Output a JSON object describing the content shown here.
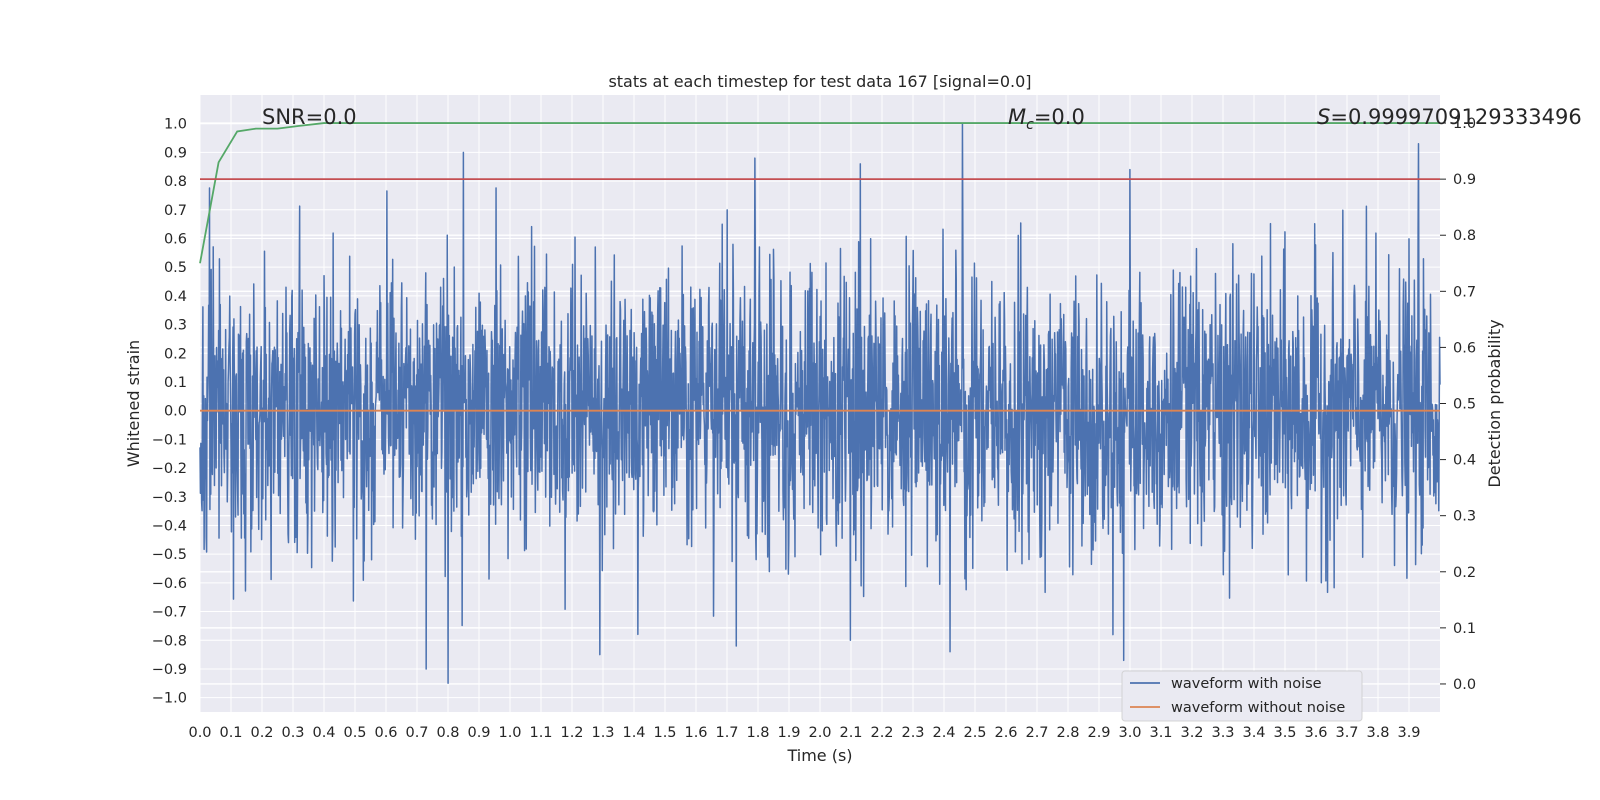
{
  "chart_data": {
    "type": "line",
    "title": "stats at each timestep for test data 167 [signal=0.0]",
    "xlabel": "Time (s)",
    "ylabel": "Whitened strain",
    "y2label": "Detection probability",
    "xlim": [
      0.0,
      4.0
    ],
    "ylim": [
      -1.05,
      1.1
    ],
    "y2lim": [
      -0.05,
      1.05
    ],
    "x_ticks": [
      "0.0",
      "0.1",
      "0.2",
      "0.3",
      "0.4",
      "0.5",
      "0.6",
      "0.7",
      "0.8",
      "0.9",
      "1.0",
      "1.1",
      "1.2",
      "1.3",
      "1.4",
      "1.5",
      "1.6",
      "1.7",
      "1.8",
      "1.9",
      "2.0",
      "2.1",
      "2.2",
      "2.3",
      "2.4",
      "2.5",
      "2.6",
      "2.7",
      "2.8",
      "2.9",
      "3.0",
      "3.1",
      "3.2",
      "3.3",
      "3.4",
      "3.5",
      "3.6",
      "3.7",
      "3.8",
      "3.9"
    ],
    "y_ticks": [
      "1.0",
      "0.9",
      "0.8",
      "0.7",
      "0.6",
      "0.5",
      "0.4",
      "0.3",
      "0.2",
      "0.1",
      "0.0",
      "-0.1",
      "-0.2",
      "-0.3",
      "-0.4",
      "-0.5",
      "-0.6",
      "-0.7",
      "-0.8",
      "-0.9",
      "-1.0"
    ],
    "y2_ticks": [
      "1.0",
      "0.9",
      "0.8",
      "0.7",
      "0.6",
      "0.5",
      "0.4",
      "0.3",
      "0.2",
      "0.1",
      "0.0"
    ],
    "grid": true,
    "legend_position": "lower-right",
    "legend": [
      "waveform with noise",
      "waveform without noise"
    ],
    "series": [
      {
        "name": "waveform with noise",
        "axis": "left",
        "color": "#4c72b0",
        "kind": "noisy",
        "x_range": [
          0.0,
          4.0
        ],
        "peaks": [
          [
            0.85,
            0.9
          ],
          [
            2.46,
            1.0
          ],
          [
            3.93,
            0.93
          ],
          [
            1.79,
            0.88
          ],
          [
            2.13,
            0.86
          ],
          [
            3.0,
            0.84
          ],
          [
            0.8,
            -0.95
          ],
          [
            0.73,
            -0.9
          ],
          [
            2.98,
            -0.87
          ],
          [
            1.29,
            -0.85
          ],
          [
            2.42,
            -0.84
          ],
          [
            1.73,
            -0.82
          ]
        ]
      },
      {
        "name": "waveform without noise",
        "axis": "left",
        "color": "#dd8452",
        "x": [
          0.0,
          4.0
        ],
        "y": [
          0.0,
          0.0
        ]
      },
      {
        "axis": "right",
        "color": "#55a868",
        "x": [
          0.0,
          0.06,
          0.12,
          0.18,
          0.25,
          0.32,
          0.4,
          1.0,
          2.0,
          3.0,
          4.0
        ],
        "y": [
          0.75,
          0.93,
          0.985,
          0.99,
          0.99,
          0.995,
          1.0,
          1.0,
          1.0,
          1.0,
          1.0
        ]
      },
      {
        "axis": "right",
        "color": "#c44e52",
        "x": [
          0.0,
          4.0
        ],
        "y": [
          0.9,
          0.9
        ]
      }
    ],
    "annotations": {
      "snr": "SNR=0.0",
      "mc_symbol": "M",
      "mc_subscript": "c",
      "mc_value": "=0.0",
      "s_symbol": "S",
      "s_value": "=0.9999709129333496"
    }
  }
}
